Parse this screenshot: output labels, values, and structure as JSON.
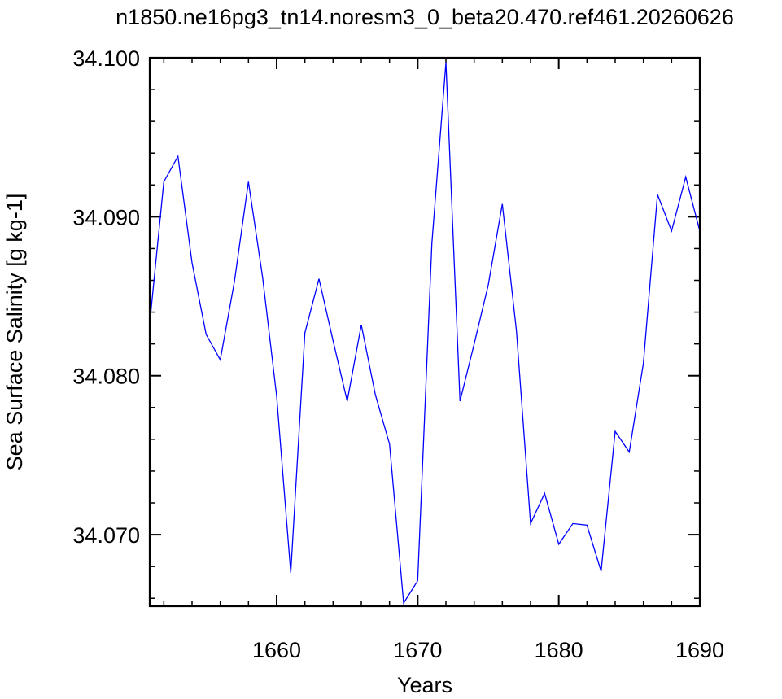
{
  "chart_data": {
    "type": "line",
    "title": "n1850.ne16pg3_tn14.noresm3_0_beta20.470.ref461.20260626",
    "xlabel": "Years",
    "ylabel": "Sea Surface Salinity [g kg-1]",
    "xlim": [
      1651,
      1690
    ],
    "ylim": [
      34.0655,
      34.1
    ],
    "x_ticks": [
      1660,
      1670,
      1680,
      1690
    ],
    "x_tick_labels": [
      "1660",
      "1670",
      "1680",
      "1690"
    ],
    "y_ticks": [
      34.07,
      34.08,
      34.09,
      34.1
    ],
    "y_tick_labels": [
      "34.070",
      "34.080",
      "34.090",
      "34.100"
    ],
    "grid": false,
    "series": [
      {
        "color": "#0000ff",
        "x": [
          1651,
          1652,
          1653,
          1654,
          1655,
          1656,
          1657,
          1658,
          1659,
          1660,
          1661,
          1662,
          1663,
          1664,
          1665,
          1666,
          1667,
          1668,
          1669,
          1670,
          1671,
          1672,
          1673,
          1674,
          1675,
          1676,
          1677,
          1678,
          1679,
          1680,
          1681,
          1682,
          1683,
          1684,
          1685,
          1686,
          1687,
          1688,
          1689,
          1690
        ],
        "values": [
          34.0833,
          34.0922,
          34.0938,
          34.0871,
          34.0826,
          34.081,
          34.0859,
          34.0922,
          34.0862,
          34.0787,
          34.0676,
          34.0827,
          34.0861,
          34.0822,
          34.0784,
          34.0832,
          34.0788,
          34.0757,
          34.0657,
          34.0671,
          34.0883,
          34.0997,
          34.0784,
          34.082,
          34.0857,
          34.0908,
          34.0828,
          34.0707,
          34.0726,
          34.0694,
          34.0707,
          34.0706,
          34.0677,
          34.0765,
          34.0752,
          34.0808,
          34.0914,
          34.0891,
          34.0925,
          34.0891
        ]
      }
    ]
  }
}
